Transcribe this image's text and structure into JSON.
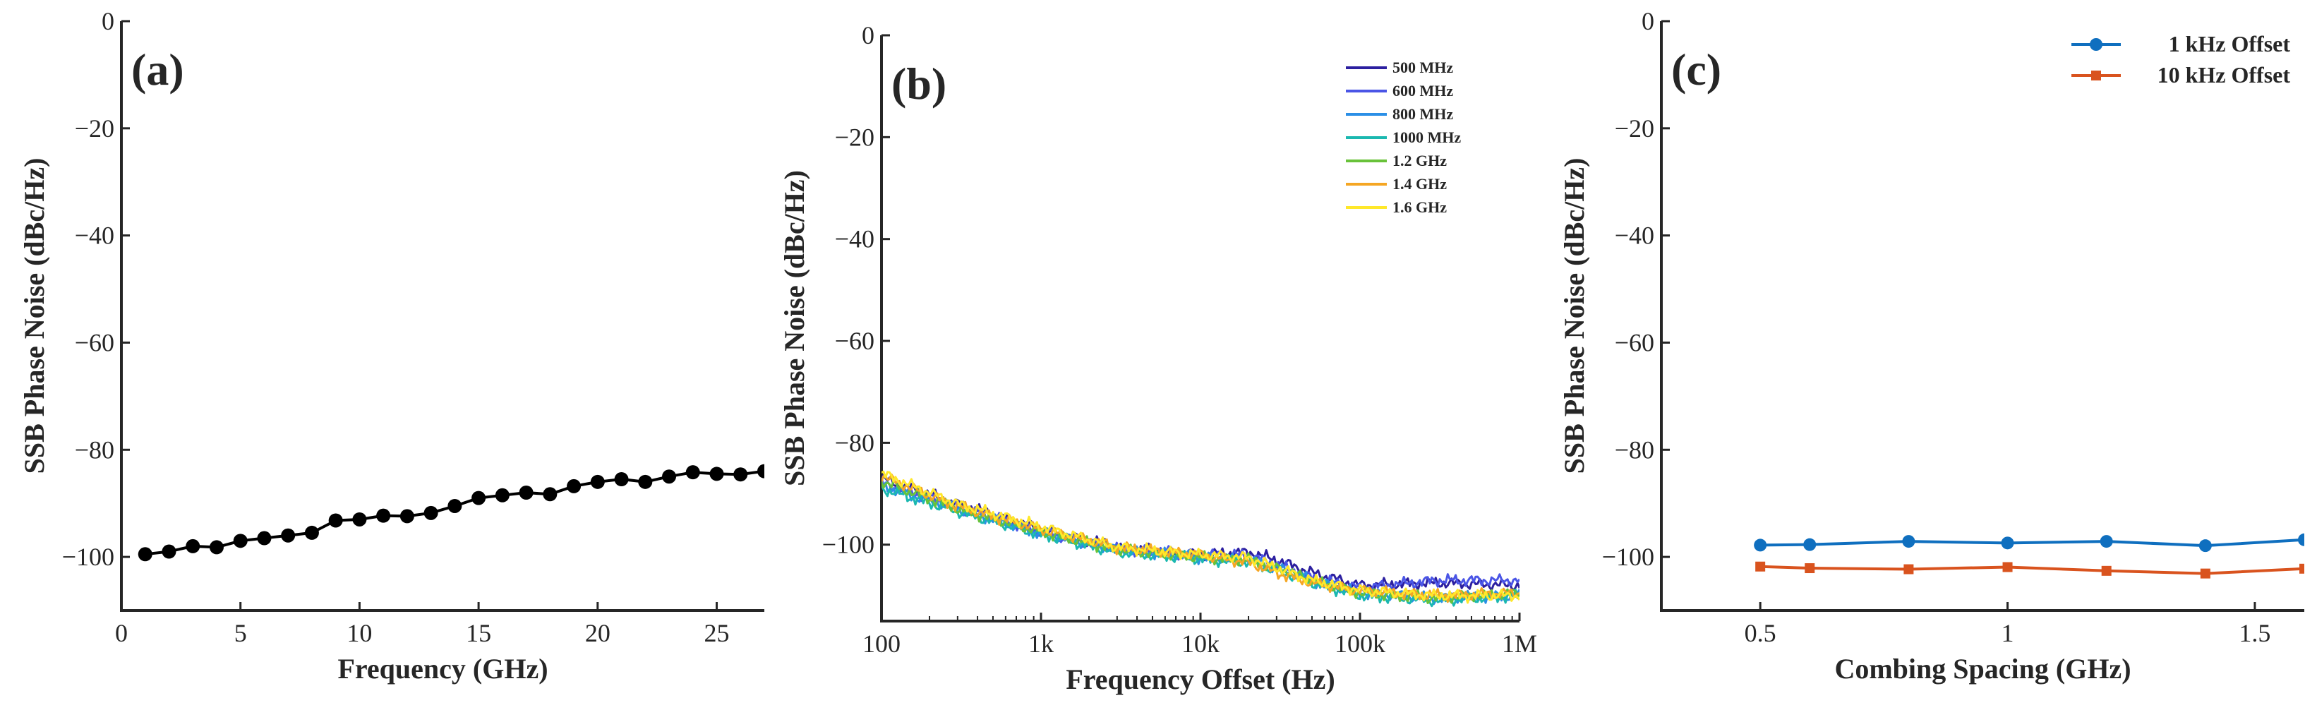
{
  "chart_data": [
    {
      "type": "line",
      "panel_label": "(a)",
      "xlabel": "Frequency (GHz)",
      "ylabel": "SSB Phase Noise (dBc/Hz)",
      "xlim": [
        0,
        27
      ],
      "ylim": [
        -110,
        0
      ],
      "xticks": [
        0,
        5,
        10,
        15,
        20,
        25
      ],
      "xtick_labels": [
        "0",
        "5",
        "10",
        "15",
        "20",
        "25"
      ],
      "yticks": [
        0,
        -20,
        -40,
        -60,
        -80,
        -100
      ],
      "ytick_labels": [
        "0",
        "−20",
        "−40",
        "−60",
        "−80",
        "−100"
      ],
      "color": "#000000",
      "series": [
        {
          "name": "Phase noise",
          "x": [
            1,
            2,
            3,
            4,
            5,
            6,
            7,
            8,
            9,
            10,
            11,
            12,
            13,
            14,
            15,
            16,
            17,
            18,
            19,
            20,
            21,
            22,
            23,
            24,
            25,
            26,
            27
          ],
          "y": [
            -99.5,
            -99,
            -98,
            -98.2,
            -97,
            -96.5,
            -96,
            -95.5,
            -93.2,
            -93,
            -92.3,
            -92.4,
            -91.8,
            -90.5,
            -89,
            -88.5,
            -88,
            -88.3,
            -86.8,
            -86,
            -85.5,
            -86,
            -85,
            -84.2,
            -84.5,
            -84.6,
            -84
          ]
        }
      ]
    },
    {
      "type": "line",
      "panel_label": "(b)",
      "xscale": "log",
      "xlabel": "Frequency Offset (Hz)",
      "ylabel": "SSB Phase Noise (dBc/Hz)",
      "xlim": [
        100,
        1000000
      ],
      "ylim": [
        -115,
        0
      ],
      "xticks": [
        100,
        1000,
        10000,
        100000,
        1000000
      ],
      "xtick_labels": [
        "100",
        "1k",
        "10k",
        "100k",
        "1M"
      ],
      "yticks": [
        0,
        -20,
        -40,
        -60,
        -80,
        -100
      ],
      "ytick_labels": [
        "0",
        "−20",
        "−40",
        "−60",
        "−80",
        "−100"
      ],
      "legend_position": "top-right",
      "series": [
        {
          "name": "500 MHz",
          "color": "#2c1fa0",
          "x": [
            100,
            300,
            1000,
            3000,
            10000,
            20000,
            30000,
            50000,
            100000,
            300000,
            1000000
          ],
          "y": [
            -87,
            -92,
            -97,
            -100.5,
            -102,
            -101.5,
            -103,
            -105.5,
            -108,
            -107.5,
            -108
          ]
        },
        {
          "name": "600 MHz",
          "color": "#4a55e6",
          "x": [
            100,
            300,
            1000,
            3000,
            10000,
            20000,
            30000,
            50000,
            100000,
            300000,
            1000000
          ],
          "y": [
            -88,
            -92.5,
            -97.5,
            -100.8,
            -102,
            -102,
            -104,
            -106.5,
            -108.5,
            -107,
            -107
          ]
        },
        {
          "name": "800 MHz",
          "color": "#2b8fe6",
          "x": [
            100,
            300,
            1000,
            3000,
            10000,
            20000,
            30000,
            50000,
            100000,
            300000,
            1000000
          ],
          "y": [
            -88.5,
            -93,
            -97.8,
            -101,
            -102.5,
            -103,
            -104.5,
            -107,
            -109.5,
            -110.5,
            -110
          ]
        },
        {
          "name": "1000 MHz",
          "color": "#1bb8b0",
          "x": [
            100,
            300,
            1000,
            3000,
            10000,
            20000,
            30000,
            50000,
            100000,
            300000,
            1000000
          ],
          "y": [
            -89,
            -93.5,
            -98,
            -101.5,
            -102.8,
            -103.5,
            -105,
            -107.5,
            -110,
            -111,
            -110
          ]
        },
        {
          "name": "1.2 GHz",
          "color": "#69c23a",
          "x": [
            100,
            300,
            1000,
            3000,
            10000,
            20000,
            30000,
            50000,
            100000,
            300000,
            1000000
          ],
          "y": [
            -87.5,
            -93,
            -97.5,
            -101,
            -102.5,
            -103,
            -104.5,
            -107,
            -109.5,
            -110.5,
            -109.5
          ]
        },
        {
          "name": "1.4 GHz",
          "color": "#f5a623",
          "x": [
            100,
            300,
            1000,
            3000,
            10000,
            20000,
            30000,
            50000,
            100000,
            300000,
            1000000
          ],
          "y": [
            -86.5,
            -92.5,
            -97,
            -100.5,
            -102,
            -103.5,
            -105.5,
            -107.5,
            -109,
            -110,
            -109.5
          ]
        },
        {
          "name": "1.6 GHz",
          "color": "#ffe82a",
          "x": [
            100,
            300,
            1000,
            3000,
            10000,
            20000,
            30000,
            50000,
            100000,
            300000,
            1000000
          ],
          "y": [
            -86,
            -92,
            -96.5,
            -100.5,
            -102,
            -102.5,
            -104.5,
            -107,
            -109,
            -110,
            -110
          ]
        }
      ]
    },
    {
      "type": "line",
      "panel_label": "(c)",
      "xlabel": "Combing Spacing (GHz)",
      "ylabel": "SSB Phase Noise (dBc/Hz)",
      "xlim": [
        0.3,
        1.6
      ],
      "ylim": [
        -110,
        0
      ],
      "xticks": [
        0.5,
        1,
        1.5
      ],
      "xtick_labels": [
        "0.5",
        "1",
        "1.5"
      ],
      "yticks": [
        0,
        -20,
        -40,
        -60,
        -80,
        -100
      ],
      "ytick_labels": [
        "0",
        "−20",
        "−40",
        "−60",
        "−80",
        "−100"
      ],
      "legend_position": "top-right",
      "series": [
        {
          "name": "1 kHz Offset",
          "color": "#0f6fbf",
          "marker": "circle",
          "x": [
            0.5,
            0.6,
            0.8,
            1.0,
            1.2,
            1.4,
            1.6
          ],
          "y": [
            -97.8,
            -97.7,
            -97.1,
            -97.4,
            -97.1,
            -97.9,
            -96.8
          ]
        },
        {
          "name": "10 kHz Offset",
          "color": "#d9531e",
          "marker": "square",
          "x": [
            0.5,
            0.6,
            0.8,
            1.0,
            1.2,
            1.4,
            1.6
          ],
          "y": [
            -101.8,
            -102.1,
            -102.3,
            -101.9,
            -102.6,
            -103.1,
            -102.2
          ]
        }
      ]
    }
  ]
}
